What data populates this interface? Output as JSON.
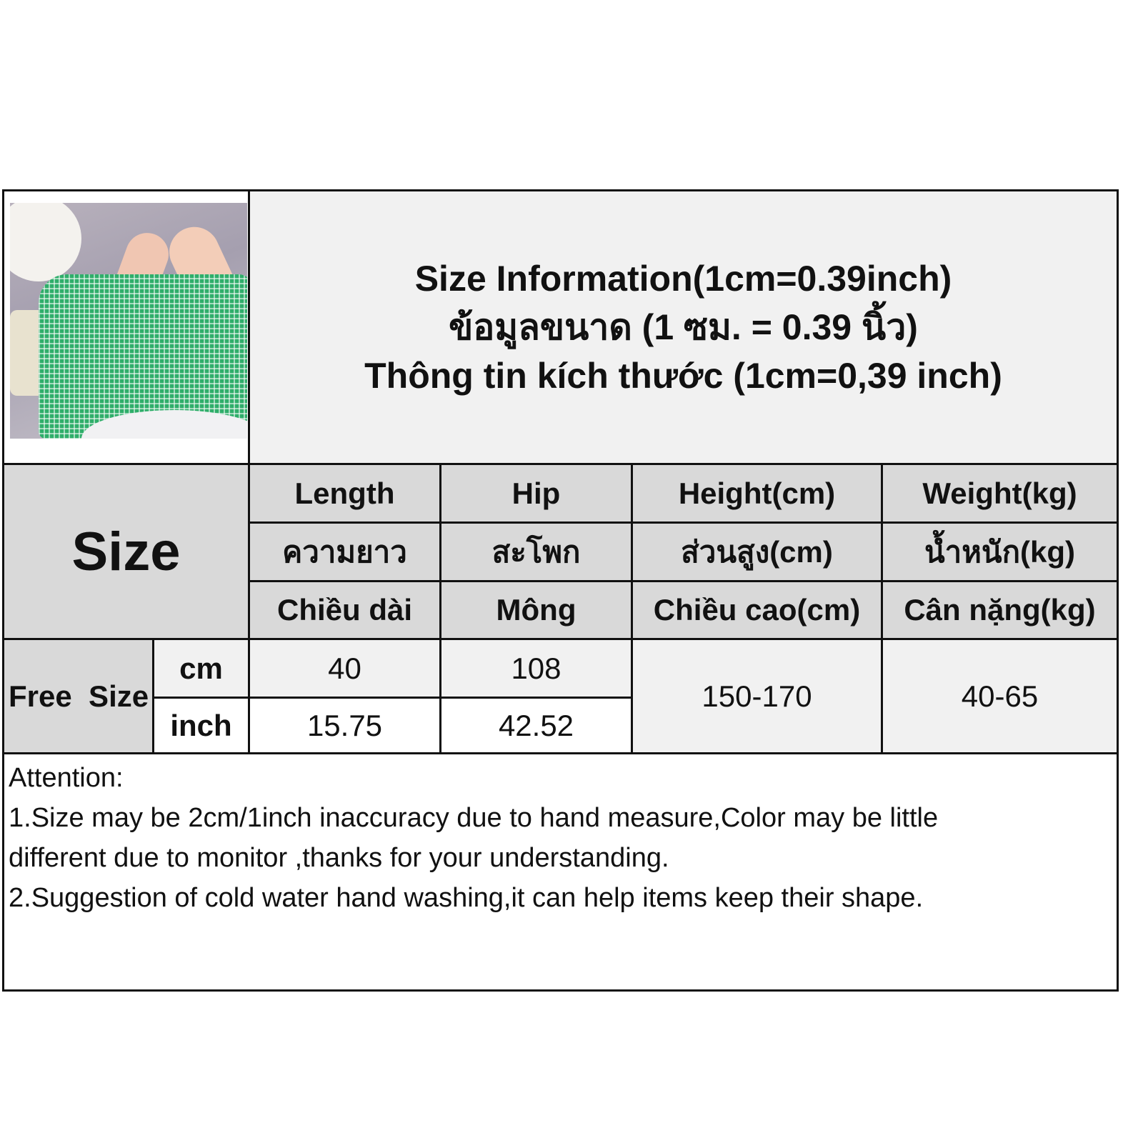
{
  "title": {
    "line1": "Size Information(1cm=0.39inch)",
    "line2": "ข้อมูลขนาด (1 ซม. = 0.39 นิ้ว)",
    "line3": "Thông tin kích thước (1cm=0,39 inch)"
  },
  "table": {
    "size_label": "Size",
    "columns": [
      {
        "en": "Length",
        "th": "ความยาว",
        "vi": "Chiều dài"
      },
      {
        "en": "Hip",
        "th": "สะโพก",
        "vi": "Mông"
      },
      {
        "en": "Height(cm)",
        "th": "ส่วนสูง(cm)",
        "vi": "Chiều cao(cm)"
      },
      {
        "en": "Weight(kg)",
        "th": "น้ำหนัก(kg)",
        "vi": "Cân nặng(kg)"
      }
    ],
    "rows": [
      {
        "size": "Free  Size",
        "cm": {
          "unit": "cm",
          "length": "40",
          "hip": "108"
        },
        "inch": {
          "unit": "inch",
          "length": "15.75",
          "hip": "42.52"
        },
        "height": "150-170",
        "weight": "40-65"
      }
    ]
  },
  "attention": {
    "heading": "Attention:",
    "lines": [
      "1.Size may be 2cm/1inch inaccuracy due to hand measure,Color may be little",
      "different due to monitor ,thanks for your understanding.",
      "2.Suggestion of cold water hand washing,it can help items keep their shape."
    ]
  },
  "colors": {
    "header_gray": "#d9d9d9",
    "light_gray": "#f1f1f1",
    "border": "#111111",
    "product_green": "#2fae6a"
  }
}
